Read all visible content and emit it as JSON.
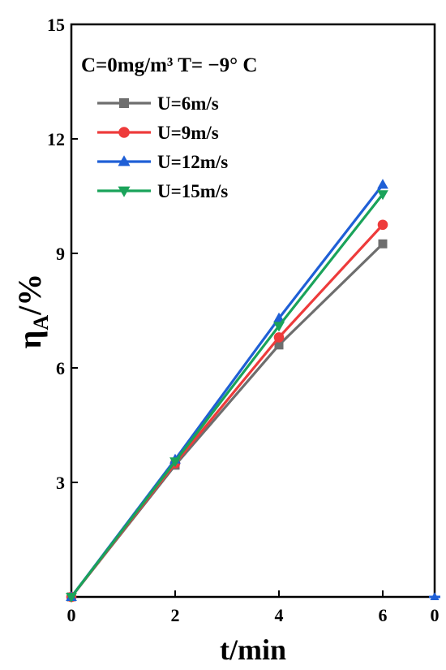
{
  "chart_data": {
    "type": "line",
    "title": "",
    "annotation": "C=0mg/m³ T= −9° C",
    "xlabel": "t/min",
    "ylabel_main": "η",
    "ylabel_sub": "A",
    "ylabel_rest": "/%",
    "xlim": [
      0,
      7
    ],
    "ylim": [
      0,
      15
    ],
    "x_ticks": [
      0,
      2,
      4,
      6
    ],
    "x_tick_labels": [
      "0",
      "2",
      "4",
      "6"
    ],
    "x_right_label": "0",
    "y_ticks": [
      3,
      6,
      9,
      12,
      15
    ],
    "y_tick_labels": [
      "3",
      "6",
      "9",
      "12",
      "15"
    ],
    "x": [
      0,
      2,
      4,
      6
    ],
    "series": [
      {
        "name": "U=6m/s",
        "color": "#6e6e6e",
        "marker": "square",
        "values": [
          0,
          3.45,
          6.6,
          9.25
        ]
      },
      {
        "name": "U=9m/s",
        "color": "#ee3b3b",
        "marker": "circle",
        "values": [
          0,
          3.5,
          6.8,
          9.75
        ]
      },
      {
        "name": "U=12m/s",
        "color": "#1f5fd6",
        "marker": "triangle-up",
        "values": [
          0,
          3.6,
          7.3,
          10.8
        ]
      },
      {
        "name": "U=15m/s",
        "color": "#1aa35a",
        "marker": "triangle-down",
        "values": [
          0,
          3.55,
          7.1,
          10.55
        ]
      }
    ],
    "grid": false,
    "legend_position": "top-left"
  }
}
